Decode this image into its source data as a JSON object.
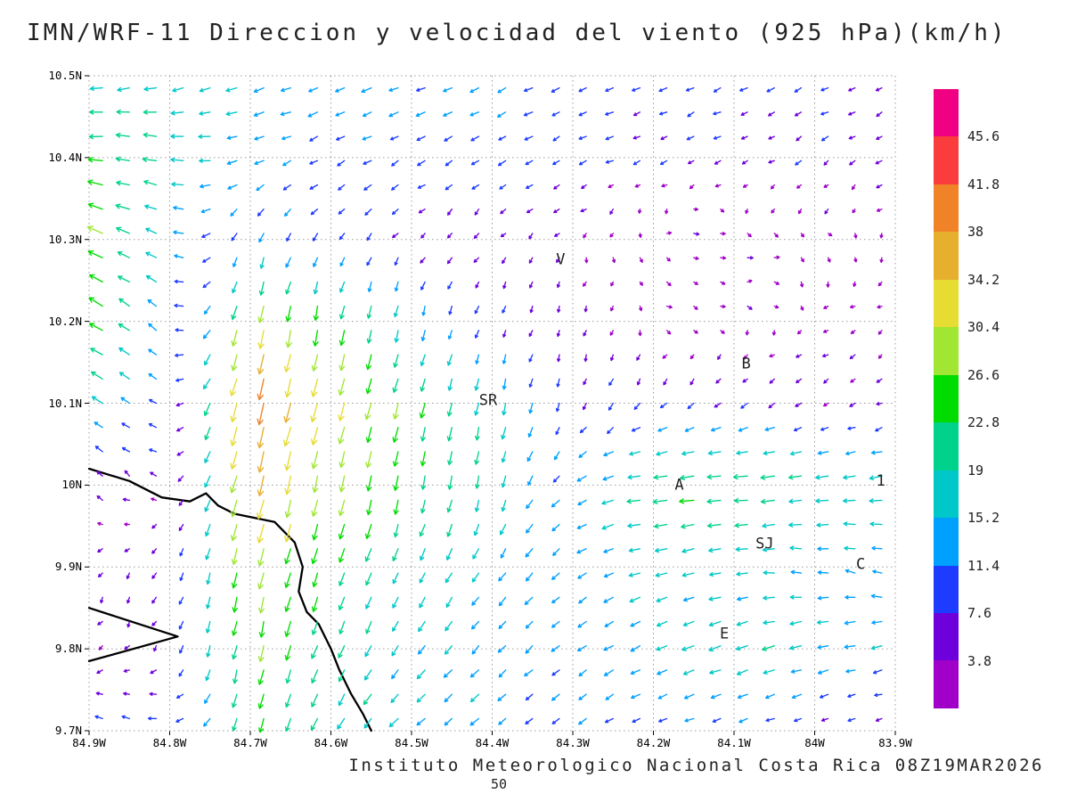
{
  "chart_data": {
    "type": "vector-field",
    "title": "IMN/WRF-11 Direccion y velocidad del viento (925 hPa)(km/h)",
    "footer": "Instituto Meteorologico Nacional Costa Rica 08Z19MAR2026",
    "page_number": "50",
    "units": "km/h",
    "level": "925 hPa",
    "x_axis": {
      "ticks": [
        "84.9W",
        "84.8W",
        "84.7W",
        "84.6W",
        "84.5W",
        "84.4W",
        "84.3W",
        "84.2W",
        "84.1W",
        "84W",
        "83.9W"
      ],
      "values": [
        84.9,
        84.8,
        84.7,
        84.6,
        84.5,
        84.4,
        84.3,
        84.2,
        84.1,
        84.0,
        83.9
      ],
      "range": [
        84.9,
        83.9
      ]
    },
    "y_axis": {
      "ticks": [
        "10.5N",
        "10.4N",
        "10.3N",
        "10.2N",
        "10.1N",
        "10N",
        "9.9N",
        "9.8N",
        "9.7N"
      ],
      "values": [
        10.5,
        10.4,
        10.3,
        10.2,
        10.1,
        10.0,
        9.9,
        9.8,
        9.7
      ],
      "range": [
        9.7,
        10.5
      ]
    },
    "grid": true,
    "colorbar": {
      "levels": [
        3.8,
        7.6,
        11.4,
        15.2,
        19,
        22.8,
        26.6,
        30.4,
        34.2,
        38,
        41.8,
        45.6
      ],
      "labels": [
        "45.6",
        "41.8",
        "38",
        "34.2",
        "30.4",
        "26.6",
        "22.8",
        "19",
        "15.2",
        "11.4",
        "7.6",
        "3.8"
      ],
      "colors": [
        "#a000c8",
        "#6e00dc",
        "#1e3cff",
        "#00a0ff",
        "#00c8c8",
        "#00d28c",
        "#00dc00",
        "#a0e632",
        "#e6dc32",
        "#e6af2d",
        "#f08228",
        "#fa3c3c",
        "#f00082"
      ]
    },
    "stations": [
      {
        "label": "V",
        "lon": 84.315,
        "lat": 10.275
      },
      {
        "label": "B",
        "lon": 84.085,
        "lat": 10.148
      },
      {
        "label": "SR",
        "lon": 84.405,
        "lat": 10.103
      },
      {
        "label": "A",
        "lon": 84.168,
        "lat": 10.0
      },
      {
        "label": "1",
        "lon": 83.918,
        "lat": 10.005
      },
      {
        "label": "SJ",
        "lon": 84.062,
        "lat": 9.928
      },
      {
        "label": "C",
        "lon": 83.943,
        "lat": 9.903
      },
      {
        "label": "E",
        "lon": 84.112,
        "lat": 9.818
      }
    ],
    "coastlines": [
      [
        [
          84.9,
          10.02
        ],
        [
          84.85,
          10.005
        ],
        [
          84.81,
          9.985
        ],
        [
          84.775,
          9.98
        ],
        [
          84.755,
          9.99
        ],
        [
          84.74,
          9.975
        ],
        [
          84.72,
          9.965
        ],
        [
          84.67,
          9.955
        ],
        [
          84.645,
          9.93
        ],
        [
          84.635,
          9.9
        ],
        [
          84.64,
          9.87
        ],
        [
          84.63,
          9.845
        ],
        [
          84.615,
          9.83
        ],
        [
          84.6,
          9.8
        ],
        [
          84.59,
          9.775
        ],
        [
          84.575,
          9.745
        ],
        [
          84.56,
          9.72
        ],
        [
          84.55,
          9.7
        ]
      ],
      [
        [
          84.9,
          9.85
        ],
        [
          84.79,
          9.815
        ],
        [
          84.9,
          9.785
        ]
      ]
    ],
    "wind_field": {
      "lons": [
        84.9,
        84.8,
        84.7,
        84.6,
        84.5,
        84.4,
        84.3,
        84.2,
        84.1,
        84.0,
        83.9
      ],
      "lats": [
        10.5,
        10.4,
        10.3,
        10.2,
        10.1,
        10.0,
        9.9,
        9.8,
        9.7
      ],
      "u": [
        [
          -18,
          -16,
          -14,
          -13,
          -12,
          -11,
          -10,
          -9,
          -8,
          -8,
          -7
        ],
        [
          -24,
          -20,
          -12,
          -10,
          -9,
          -8,
          -7,
          -6,
          -5,
          -5,
          -5
        ],
        [
          -26,
          -14,
          -4,
          -6,
          -4,
          -3,
          -2,
          3,
          4,
          2,
          -2
        ],
        [
          -22,
          -10,
          -6,
          -4,
          -4,
          -3,
          -2,
          2,
          3,
          -2,
          -3
        ],
        [
          -16,
          -8,
          -10,
          -8,
          -6,
          -4,
          -3,
          -6,
          -8,
          -4,
          -3
        ],
        [
          -6,
          -4,
          -9,
          -6,
          -4,
          -4,
          -10,
          -22,
          -24,
          -20,
          -20
        ],
        [
          -2,
          -3,
          -6,
          -8,
          -8,
          -8,
          -10,
          -16,
          -15,
          -14,
          -13
        ],
        [
          -2,
          -3,
          -5,
          -8,
          -10,
          -10,
          -10,
          -14,
          -18,
          -16,
          -13
        ],
        [
          -8,
          -10,
          -6,
          -10,
          -12,
          -10,
          -8,
          -8,
          -10,
          -6,
          -4
        ]
      ],
      "v": [
        [
          -3,
          -4,
          -5,
          -5,
          -5,
          -5,
          -5,
          -4,
          -4,
          -4,
          -4
        ],
        [
          2,
          4,
          -4,
          -5,
          -5,
          -5,
          -4,
          -3,
          -3,
          -3,
          -3
        ],
        [
          12,
          6,
          -14,
          -8,
          -5,
          -4,
          -3,
          -1,
          0,
          -2,
          -2
        ],
        [
          14,
          8,
          -30,
          -26,
          -14,
          -8,
          -4,
          -2,
          -1,
          -2,
          -2
        ],
        [
          10,
          4,
          -40,
          -30,
          -24,
          -18,
          -8,
          -6,
          -5,
          -3,
          -2
        ],
        [
          6,
          2,
          -36,
          -26,
          -22,
          -18,
          -6,
          -2,
          -2,
          -3,
          -3
        ],
        [
          -4,
          -6,
          -28,
          -22,
          -16,
          -12,
          -8,
          -4,
          -3,
          2,
          4
        ],
        [
          -3,
          -4,
          -26,
          -20,
          -13,
          -10,
          -8,
          -6,
          -6,
          -4,
          -3
        ],
        [
          3,
          2,
          -22,
          -16,
          -10,
          -8,
          -6,
          -4,
          -4,
          -3,
          -2
        ]
      ]
    }
  }
}
